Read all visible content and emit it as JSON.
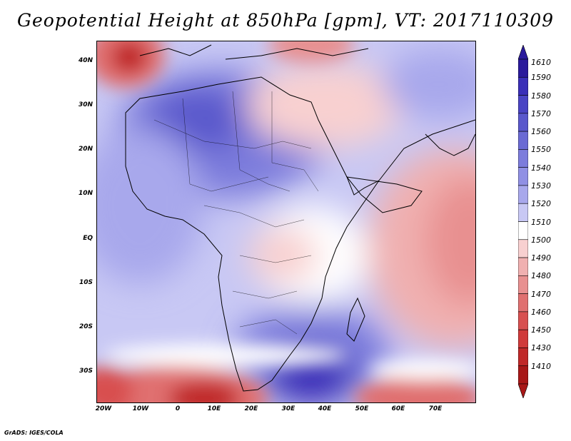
{
  "title": "Geopotential Height at 850hPa [gpm], VT: 2017110309",
  "credit": "GrADS: IGES/COLA",
  "map": {
    "lat_labels": [
      "40N",
      "30N",
      "20N",
      "10N",
      "EQ",
      "10S",
      "20S",
      "30S"
    ],
    "lon_labels": [
      "20W",
      "10W",
      "0",
      "10E",
      "20E",
      "30E",
      "40E",
      "50E",
      "60E",
      "70E"
    ]
  },
  "colorbar": {
    "levels": [
      "1610",
      "1590",
      "1580",
      "1570",
      "1560",
      "1550",
      "1540",
      "1530",
      "1520",
      "1510",
      "1500",
      "1490",
      "1480",
      "1470",
      "1460",
      "1450",
      "1430",
      "1410"
    ],
    "colors": [
      "#2a1a9c",
      "#3a2fb8",
      "#4a44c4",
      "#5a58cc",
      "#6a6ad4",
      "#7c7cdc",
      "#9090e4",
      "#a8a8ec",
      "#c8c8f4",
      "#ffffff",
      "#f8d0d0",
      "#f0b0b0",
      "#e89090",
      "#e07070",
      "#d85050",
      "#d03a3a",
      "#c02828",
      "#a81818"
    ]
  }
}
